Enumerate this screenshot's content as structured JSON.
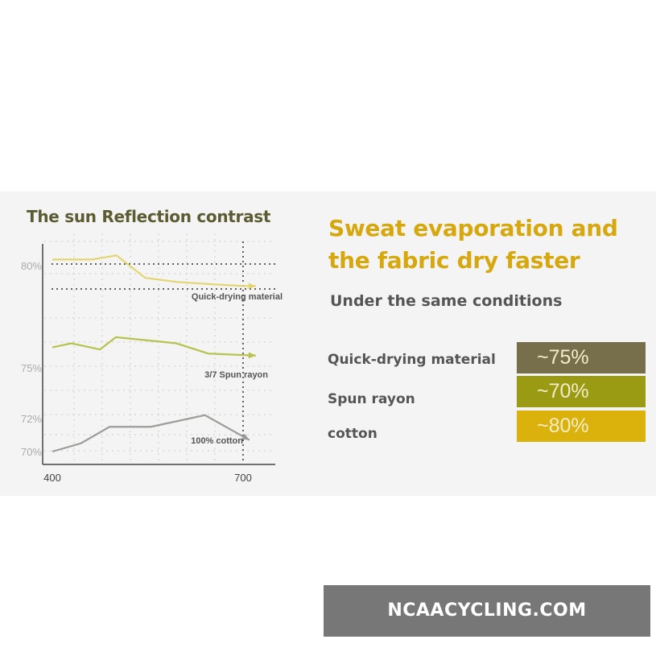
{
  "chart_data": {
    "type": "line",
    "title": "The sun Reflection contrast",
    "xlabel": "",
    "ylabel": "",
    "x_ticks": [
      "400",
      "700"
    ],
    "y_ticks": [
      "80%",
      "75%",
      "72%",
      "70%"
    ],
    "xlim": [
      400,
      720
    ],
    "ylim": [
      69.5,
      80.8
    ],
    "grid": true,
    "series": [
      {
        "name": "Quick-drying material",
        "color": "#e3d672",
        "x": [
          400,
          463,
          501,
          546,
          596,
          646,
          700,
          720
        ],
        "y": [
          80.3,
          80.3,
          80.5,
          79.4,
          79.2,
          79.1,
          79.0,
          79.0
        ]
      },
      {
        "name": "3/7 Spun rayon",
        "color": "#b8c24e",
        "x": [
          400,
          430,
          475,
          500,
          595,
          645,
          720
        ],
        "y": [
          76.0,
          76.2,
          75.9,
          76.5,
          76.2,
          75.7,
          75.6
        ]
      },
      {
        "name": "100% cotton",
        "color": "#9c9c98",
        "x": [
          400,
          445,
          490,
          555,
          640,
          710
        ],
        "y": [
          70.0,
          70.5,
          71.5,
          71.5,
          72.2,
          70.7
        ]
      }
    ]
  },
  "right": {
    "title_line1": "Sweat evaporation and",
    "title_line2": "the fabric dry faster",
    "subtitle": "Under the same conditions",
    "items": [
      {
        "label": "Quick-drying material",
        "value": "~75%",
        "color": "#776e4c"
      },
      {
        "label": "Spun rayon",
        "value": "~70%",
        "color": "#9a9b12"
      },
      {
        "label": "cotton",
        "value": "~80%",
        "color": "#dbb20c"
      }
    ]
  },
  "watermark": "NCAACYCLING.COM"
}
